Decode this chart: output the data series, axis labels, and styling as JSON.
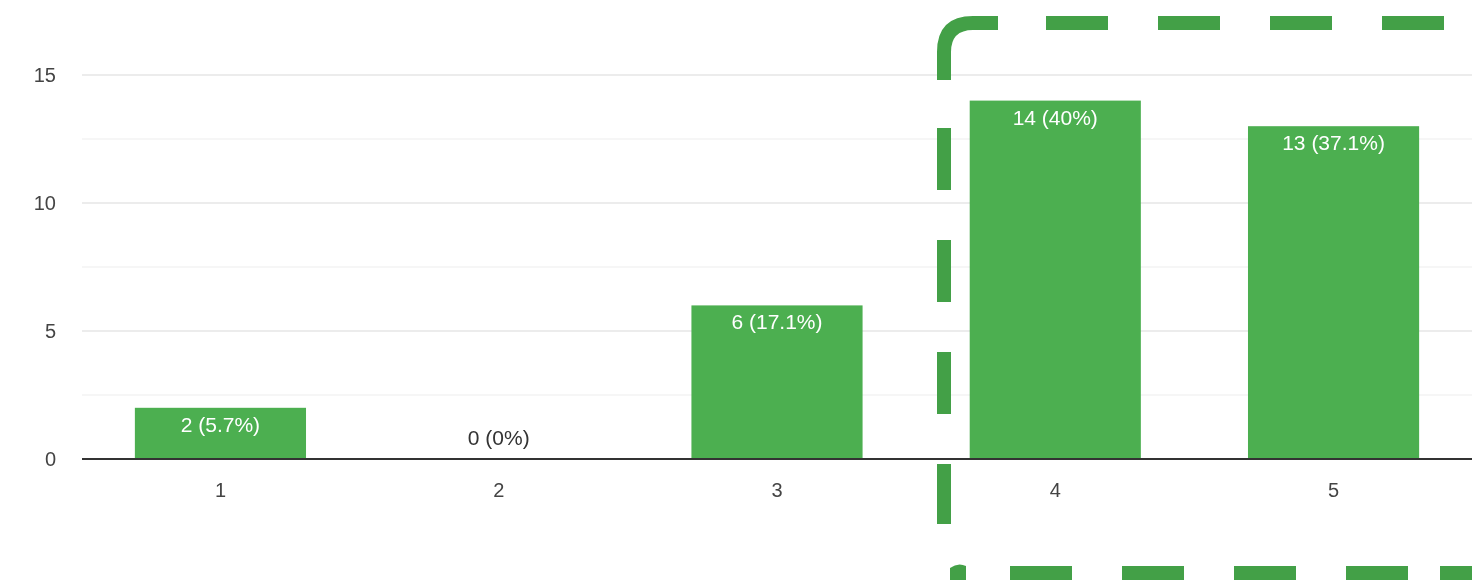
{
  "chart_data": {
    "type": "bar",
    "categories": [
      "1",
      "2",
      "3",
      "4",
      "5"
    ],
    "values": [
      2,
      0,
      6,
      14,
      13
    ],
    "color": "#4caf50",
    "value_labels": [
      "2 (5.7%)",
      "0 (0%)",
      "6 (17.1%)",
      "14 (40%)",
      "13 (37.1%)"
    ],
    "ylim": [
      0,
      15
    ],
    "yticks": [
      0,
      {
        "value": 2.5,
        "label": null
      },
      5,
      {
        "value": 7.5,
        "label": null
      },
      10,
      {
        "value": 12.5,
        "label": null
      },
      15
    ],
    "grid": "y"
  }
}
